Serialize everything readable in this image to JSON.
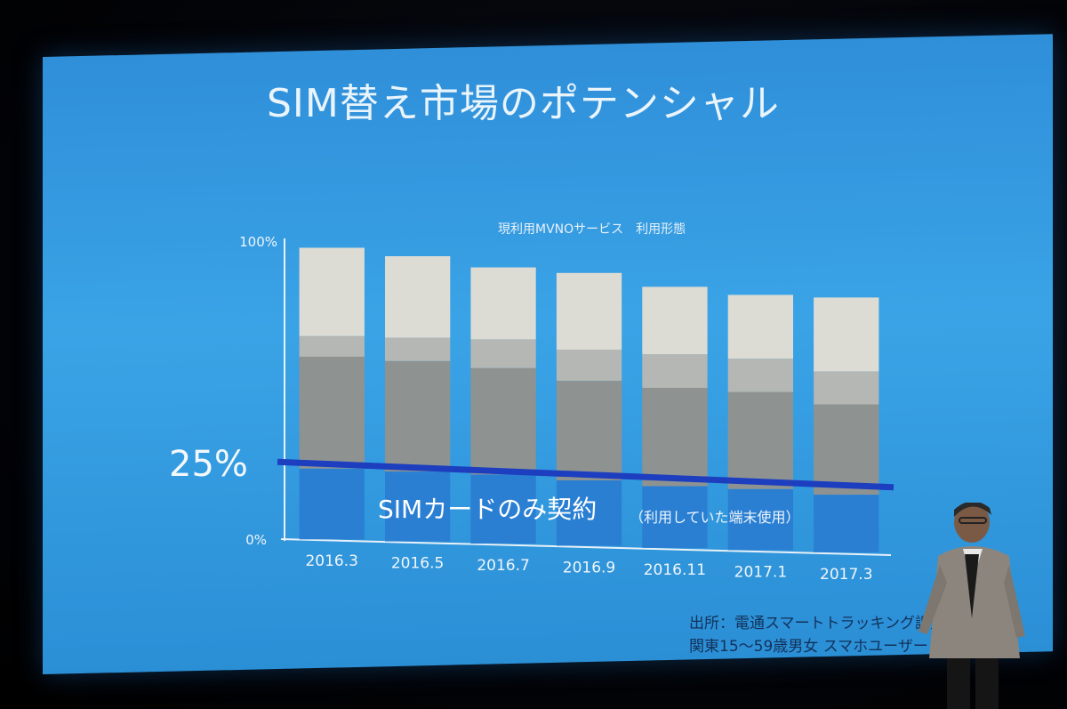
{
  "slide": {
    "title": "SIM替え市場のポテンシャル",
    "source_line1": "出所：電通スマートトラッキング調査",
    "source_line2": "関東15〜59歳男女 スマホユーザー n=600"
  },
  "chart_data": {
    "type": "bar",
    "title": "SIM替え市場のポテンシャル",
    "subtitle": "現利用MVNOサービス　利用形態",
    "categories": [
      "2016.3",
      "2016.5",
      "2016.7",
      "2016.9",
      "2016.11",
      "2017.1",
      "2017.3"
    ],
    "ylim": [
      0,
      100
    ],
    "y_ticks": [
      "100%",
      "0%"
    ],
    "series": [
      {
        "values": [
          24,
          24,
          24,
          23,
          22,
          22,
          21
        ],
        "color": "#2a7fd3"
      },
      {
        "values": [
          38,
          38,
          37,
          35,
          35,
          35,
          33
        ],
        "color": "#8e9391"
      },
      {
        "values": [
          7,
          8,
          10,
          11,
          12,
          12,
          12
        ],
        "color": "#b4b7b3"
      },
      {
        "values": [
          30,
          28,
          25,
          27,
          24,
          23,
          27
        ],
        "color": "#dcdcd4"
      }
    ],
    "reference_line": {
      "value": 25,
      "label": "25%",
      "color": "#1d3fbf"
    },
    "annotation": {
      "main": "SIMカードのみ契約",
      "sub": "（利用していた端末使用）"
    },
    "grid": false,
    "legend": "none"
  },
  "presenter": {
    "icon": "presenter-figure"
  }
}
